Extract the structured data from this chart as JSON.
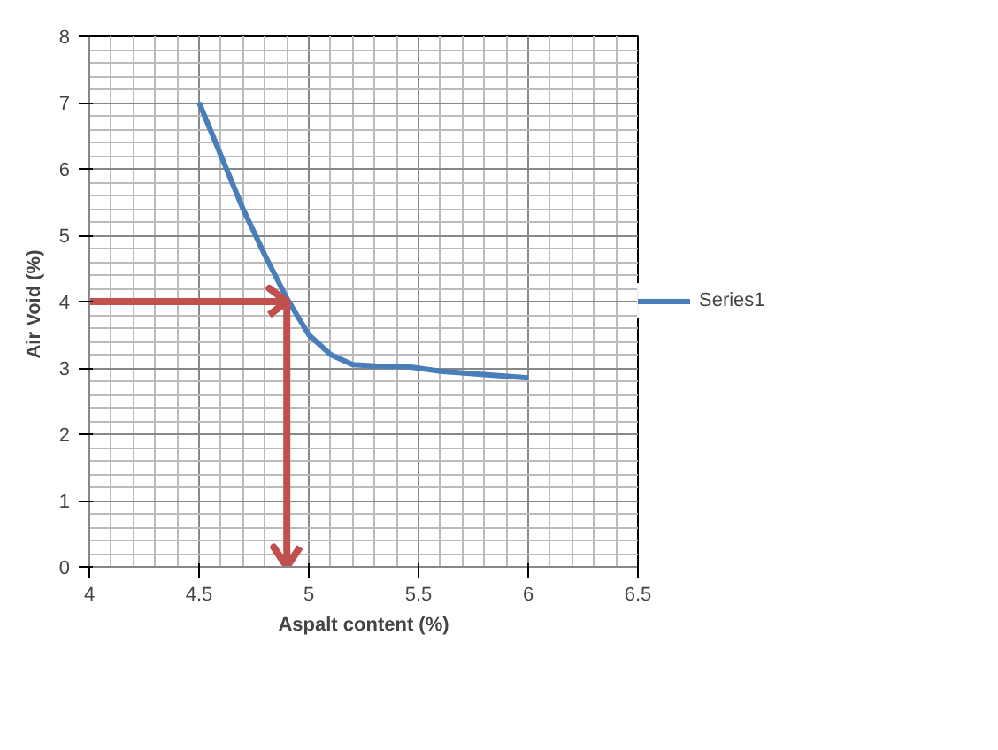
{
  "chart_data": {
    "type": "line",
    "xlabel": "Aspalt content (%)",
    "ylabel": "Air Void  (%)",
    "x": [
      4.5,
      4.6,
      4.7,
      4.8,
      4.9,
      5.0,
      5.1,
      5.2,
      5.3,
      5.45,
      5.6,
      5.8,
      6.0
    ],
    "series": [
      {
        "name": "Series1",
        "color": "#4a7ebb",
        "values": [
          7.0,
          6.2,
          5.4,
          4.7,
          4.05,
          3.5,
          3.2,
          3.05,
          3.03,
          3.02,
          2.95,
          2.9,
          2.85
        ]
      }
    ],
    "xlim": [
      4,
      6.5
    ],
    "xticks": [
      4,
      4.5,
      5,
      5.5,
      6,
      6.5
    ],
    "ylim": [
      0,
      8
    ],
    "yticks": [
      0,
      1,
      2,
      3,
      4,
      5,
      6,
      7,
      8
    ],
    "grid": true,
    "legend": "right",
    "marker": "none",
    "line_style": "solid",
    "ref_lines": [
      {
        "axis": "y",
        "value": 4,
        "color": "#c0504d"
      },
      {
        "axis": "x",
        "value": 4.9,
        "color": "#c0504d"
      }
    ]
  }
}
